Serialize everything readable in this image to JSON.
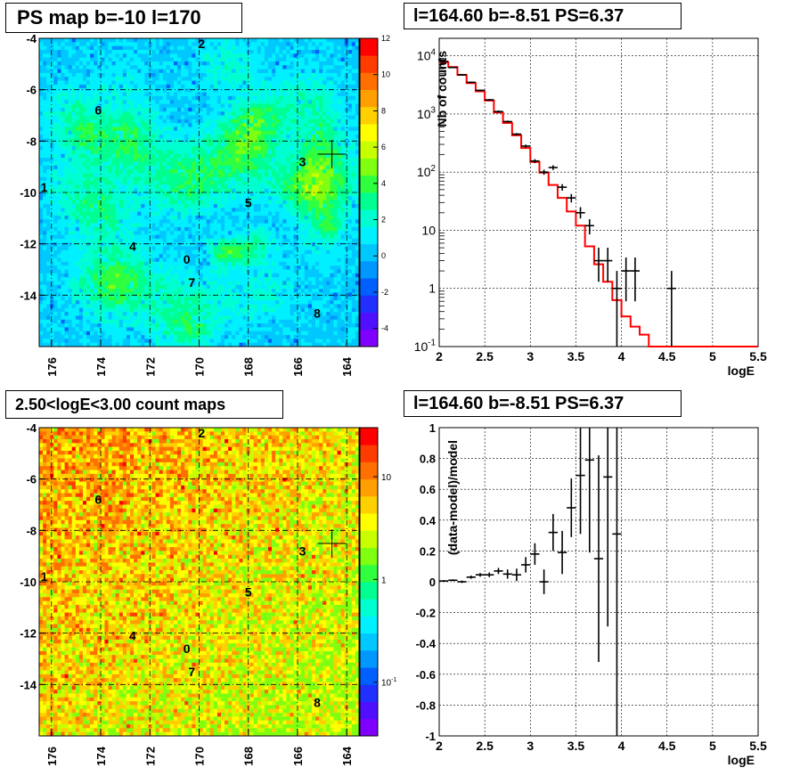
{
  "panels": {
    "tl": {
      "title": "PS map b=-10 l=170"
    },
    "tr": {
      "title": "l=164.60 b=-8.51 PS=6.37"
    },
    "bl": {
      "title": "2.50<logE<3.00 count maps"
    },
    "br": {
      "title": "l=164.60 b=-8.51 PS=6.37"
    }
  },
  "chart_data": [
    {
      "type": "heatmap",
      "id": "ps-map",
      "title": "PS map b=-10 l=170",
      "x_ticks": [
        "176",
        "174",
        "172",
        "170",
        "168",
        "166",
        "164"
      ],
      "y_ticks": [
        "-4",
        "-6",
        "-8",
        "-10",
        "-12",
        "-14"
      ],
      "xlim": [
        176.5,
        163.5
      ],
      "ylim": [
        -16,
        -4
      ],
      "grid": true,
      "colorbar": {
        "scale": "linear",
        "range": [
          -5,
          12
        ],
        "ticks": [
          "12",
          "10",
          "8",
          "6",
          "4",
          "2",
          "0",
          "-2",
          "-4"
        ]
      },
      "source_labels": [
        {
          "label": "0",
          "l": 170.5,
          "b": -12.6
        },
        {
          "label": "1",
          "l": 176.3,
          "b": -9.8
        },
        {
          "label": "2",
          "l": 169.9,
          "b": -4.2
        },
        {
          "label": "3",
          "l": 165.8,
          "b": -8.8
        },
        {
          "label": "4",
          "l": 172.7,
          "b": -12.1
        },
        {
          "label": "5",
          "l": 168.0,
          "b": -10.4
        },
        {
          "label": "6",
          "l": 174.1,
          "b": -6.8
        },
        {
          "label": "7",
          "l": 170.3,
          "b": -13.5
        },
        {
          "label": "8",
          "l": 165.2,
          "b": -14.7
        }
      ],
      "marker": {
        "l": 164.6,
        "b": -8.51
      }
    },
    {
      "type": "line",
      "id": "spectrum",
      "title": "l=164.60 b=-8.51 PS=6.37",
      "xlabel": "logE",
      "ylabel": "Nb of counts",
      "xlim": [
        2,
        5.5
      ],
      "ylim": [
        0.1,
        20000
      ],
      "yscale": "log",
      "grid": true,
      "x_ticks": [
        "2",
        "2.5",
        "3",
        "3.5",
        "4",
        "4.5",
        "5",
        "5.5"
      ],
      "y_ticks": [
        {
          "v": 0.1,
          "label": "10",
          "exp": "-1"
        },
        {
          "v": 1,
          "label": "1",
          "exp": ""
        },
        {
          "v": 10,
          "label": "10",
          "exp": ""
        },
        {
          "v": 100,
          "label": "10",
          "exp": "2"
        },
        {
          "v": 1000,
          "label": "10",
          "exp": "3"
        },
        {
          "v": 10000,
          "label": "10",
          "exp": "4"
        }
      ],
      "model": {
        "color": "#ff0000",
        "edges": [
          2.0,
          2.1,
          2.2,
          2.3,
          2.4,
          2.5,
          2.6,
          2.7,
          2.8,
          2.9,
          3.0,
          3.1,
          3.2,
          3.3,
          3.4,
          3.5,
          3.6,
          3.7,
          3.8,
          3.9,
          4.0,
          4.1,
          4.2,
          4.3,
          4.4,
          4.5,
          4.6,
          4.7,
          4.8,
          4.9,
          5.0,
          5.1,
          5.2,
          5.3,
          5.4,
          5.5
        ],
        "values": [
          7800,
          6400,
          4700,
          3400,
          2450,
          1700,
          1060,
          700,
          430,
          260,
          150,
          98,
          60,
          36,
          21,
          12,
          5.3,
          2.6,
          1.3,
          0.63,
          0.33,
          0.22,
          0.16,
          0.1,
          0.1,
          0.1,
          0.1,
          0.1,
          0.1,
          0.1,
          0.1,
          0.1,
          0.1,
          0.1,
          0.1
        ]
      },
      "data": {
        "color": "#000000",
        "points": [
          {
            "x": 2.05,
            "y": 8000,
            "lo": 7800,
            "hi": 8200
          },
          {
            "x": 2.15,
            "y": 6300,
            "lo": 6150,
            "hi": 6450
          },
          {
            "x": 2.25,
            "y": 4700,
            "lo": 4580,
            "hi": 4820
          },
          {
            "x": 2.35,
            "y": 3500,
            "lo": 3400,
            "hi": 3600
          },
          {
            "x": 2.45,
            "y": 2550,
            "lo": 2470,
            "hi": 2630
          },
          {
            "x": 2.55,
            "y": 1750,
            "lo": 1690,
            "hi": 1810
          },
          {
            "x": 2.65,
            "y": 1100,
            "lo": 1050,
            "hi": 1150
          },
          {
            "x": 2.75,
            "y": 740,
            "lo": 710,
            "hi": 770
          },
          {
            "x": 2.85,
            "y": 450,
            "lo": 430,
            "hi": 470
          },
          {
            "x": 2.95,
            "y": 280,
            "lo": 263,
            "hi": 297
          },
          {
            "x": 3.05,
            "y": 155,
            "lo": 143,
            "hi": 167
          },
          {
            "x": 3.15,
            "y": 100,
            "lo": 90,
            "hi": 110
          },
          {
            "x": 3.25,
            "y": 120,
            "lo": 109,
            "hi": 131
          },
          {
            "x": 3.35,
            "y": 55,
            "lo": 48,
            "hi": 62
          },
          {
            "x": 3.45,
            "y": 36,
            "lo": 30,
            "hi": 42
          },
          {
            "x": 3.55,
            "y": 20,
            "lo": 16,
            "hi": 25
          },
          {
            "x": 3.65,
            "y": 12,
            "lo": 8.5,
            "hi": 15.5
          },
          {
            "x": 3.75,
            "y": 3,
            "lo": 1.3,
            "hi": 5
          },
          {
            "x": 3.85,
            "y": 3,
            "lo": 1.3,
            "hi": 5
          },
          {
            "x": 3.95,
            "y": 1,
            "lo": 0.1,
            "hi": 2
          },
          {
            "x": 4.05,
            "y": 2,
            "lo": 0.6,
            "hi": 3.4
          },
          {
            "x": 4.15,
            "y": 2,
            "lo": 0.6,
            "hi": 3.4
          },
          {
            "x": 4.55,
            "y": 1,
            "lo": 0.1,
            "hi": 2
          }
        ]
      }
    },
    {
      "type": "heatmap",
      "id": "count-map",
      "title": "2.50<logE<3.00 count maps",
      "x_ticks": [
        "176",
        "174",
        "172",
        "170",
        "168",
        "166",
        "164"
      ],
      "y_ticks": [
        "-4",
        "-6",
        "-8",
        "-10",
        "-12",
        "-14"
      ],
      "xlim": [
        176.5,
        163.5
      ],
      "ylim": [
        -16,
        -4
      ],
      "grid": true,
      "colorbar": {
        "scale": "log",
        "range": [
          0.03,
          30
        ],
        "ticks": [
          {
            "v": 10,
            "label": "10",
            "exp": ""
          },
          {
            "v": 1,
            "label": "1",
            "exp": ""
          },
          {
            "v": 0.1,
            "label": "10",
            "exp": "-1"
          }
        ]
      },
      "source_labels": [
        {
          "label": "0",
          "l": 170.5,
          "b": -12.6
        },
        {
          "label": "1",
          "l": 176.3,
          "b": -9.8
        },
        {
          "label": "2",
          "l": 169.9,
          "b": -4.2
        },
        {
          "label": "3",
          "l": 165.8,
          "b": -8.8
        },
        {
          "label": "4",
          "l": 172.7,
          "b": -12.1
        },
        {
          "label": "5",
          "l": 168.0,
          "b": -10.4
        },
        {
          "label": "6",
          "l": 174.1,
          "b": -6.8
        },
        {
          "label": "7",
          "l": 170.3,
          "b": -13.5
        },
        {
          "label": "8",
          "l": 165.2,
          "b": -14.7
        }
      ],
      "marker": {
        "l": 164.6,
        "b": -8.51
      }
    },
    {
      "type": "scatter",
      "id": "residuals",
      "title": "l=164.60 b=-8.51 PS=6.37",
      "xlabel": "logE",
      "ylabel": "(data-model)/model",
      "xlim": [
        2,
        5.5
      ],
      "ylim": [
        -1,
        1
      ],
      "grid": true,
      "x_ticks": [
        "2",
        "2.5",
        "3",
        "3.5",
        "4",
        "4.5",
        "5",
        "5.5"
      ],
      "y_ticks": [
        "1",
        "0.8",
        "0.6",
        "0.4",
        "0.2",
        "0",
        "-0.2",
        "-0.4",
        "-0.6",
        "-0.8",
        "-1"
      ],
      "data": {
        "color": "#000000",
        "points": [
          {
            "x": 2.05,
            "y": 0.005,
            "err": 0.006
          },
          {
            "x": 2.15,
            "y": 0.01,
            "err": 0.006
          },
          {
            "x": 2.25,
            "y": 0.0,
            "err": 0.008
          },
          {
            "x": 2.35,
            "y": 0.03,
            "err": 0.01
          },
          {
            "x": 2.45,
            "y": 0.045,
            "err": 0.012
          },
          {
            "x": 2.55,
            "y": 0.045,
            "err": 0.015
          },
          {
            "x": 2.65,
            "y": 0.07,
            "err": 0.02
          },
          {
            "x": 2.75,
            "y": 0.05,
            "err": 0.03
          },
          {
            "x": 2.85,
            "y": 0.045,
            "err": 0.04
          },
          {
            "x": 2.95,
            "y": 0.11,
            "err": 0.05
          },
          {
            "x": 3.05,
            "y": 0.18,
            "err": 0.07
          },
          {
            "x": 3.15,
            "y": 0.0,
            "err": 0.08
          },
          {
            "x": 3.25,
            "y": 0.32,
            "err": 0.12
          },
          {
            "x": 3.35,
            "y": 0.19,
            "err": 0.14
          },
          {
            "x": 3.45,
            "y": 0.48,
            "err": 0.19
          },
          {
            "x": 3.55,
            "y": 0.69,
            "err": 0.38
          },
          {
            "x": 3.65,
            "y": 0.79,
            "err": 0.6
          },
          {
            "x": 3.75,
            "y": 0.15,
            "err": 0.67
          },
          {
            "x": 3.85,
            "y": 0.68,
            "err": 0.97
          },
          {
            "x": 3.95,
            "y": 0.31,
            "err": 1.4
          }
        ]
      }
    }
  ]
}
